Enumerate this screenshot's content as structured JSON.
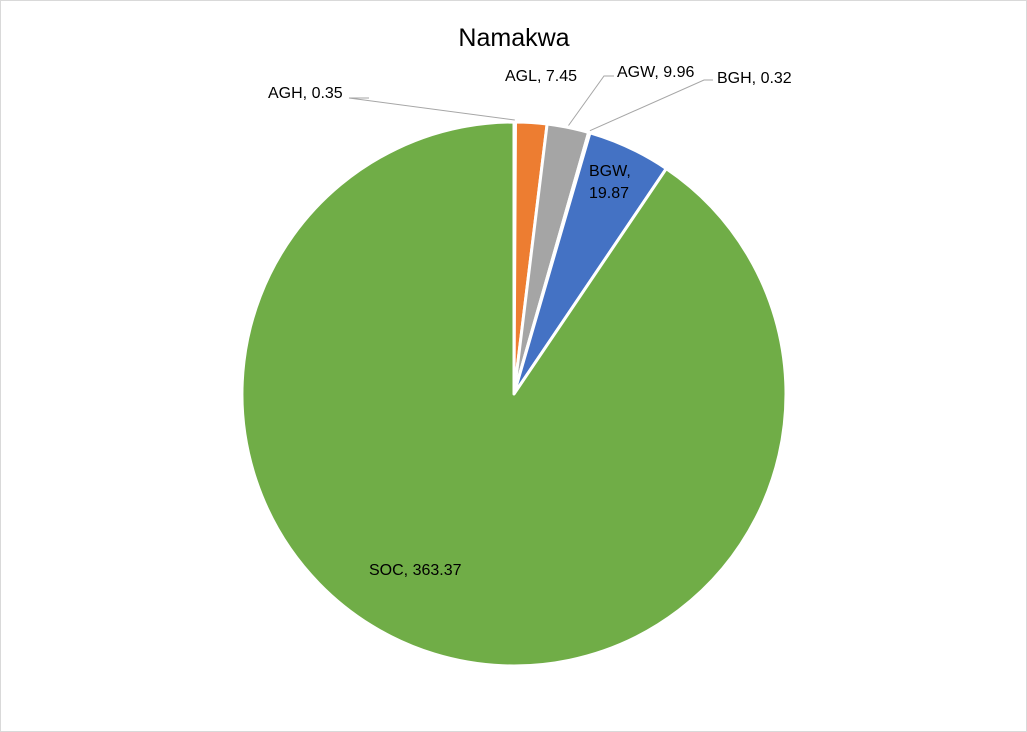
{
  "chart_data": {
    "type": "pie",
    "title": "Namakwa",
    "start_angle_deg": 0,
    "direction": "clockwise",
    "legend": "none",
    "slices": [
      {
        "name": "AGH",
        "value": 0.35,
        "label": "AGH, 0.35",
        "color": "#4472C4"
      },
      {
        "name": "AGL",
        "value": 7.45,
        "label": "AGL, 7.45",
        "color": "#ED7D31"
      },
      {
        "name": "AGW",
        "value": 9.96,
        "label": "AGW, 9.96",
        "color": "#A5A5A5"
      },
      {
        "name": "BGH",
        "value": 0.32,
        "label": "BGH, 0.32",
        "color": "#FFC000"
      },
      {
        "name": "BGW",
        "value": 19.87,
        "label_lines": [
          "BGW,",
          "19.87"
        ],
        "color": "#4472C4"
      },
      {
        "name": "SOC",
        "value": 363.37,
        "label": "SOC, 363.37",
        "color": "#70AD47"
      }
    ]
  }
}
